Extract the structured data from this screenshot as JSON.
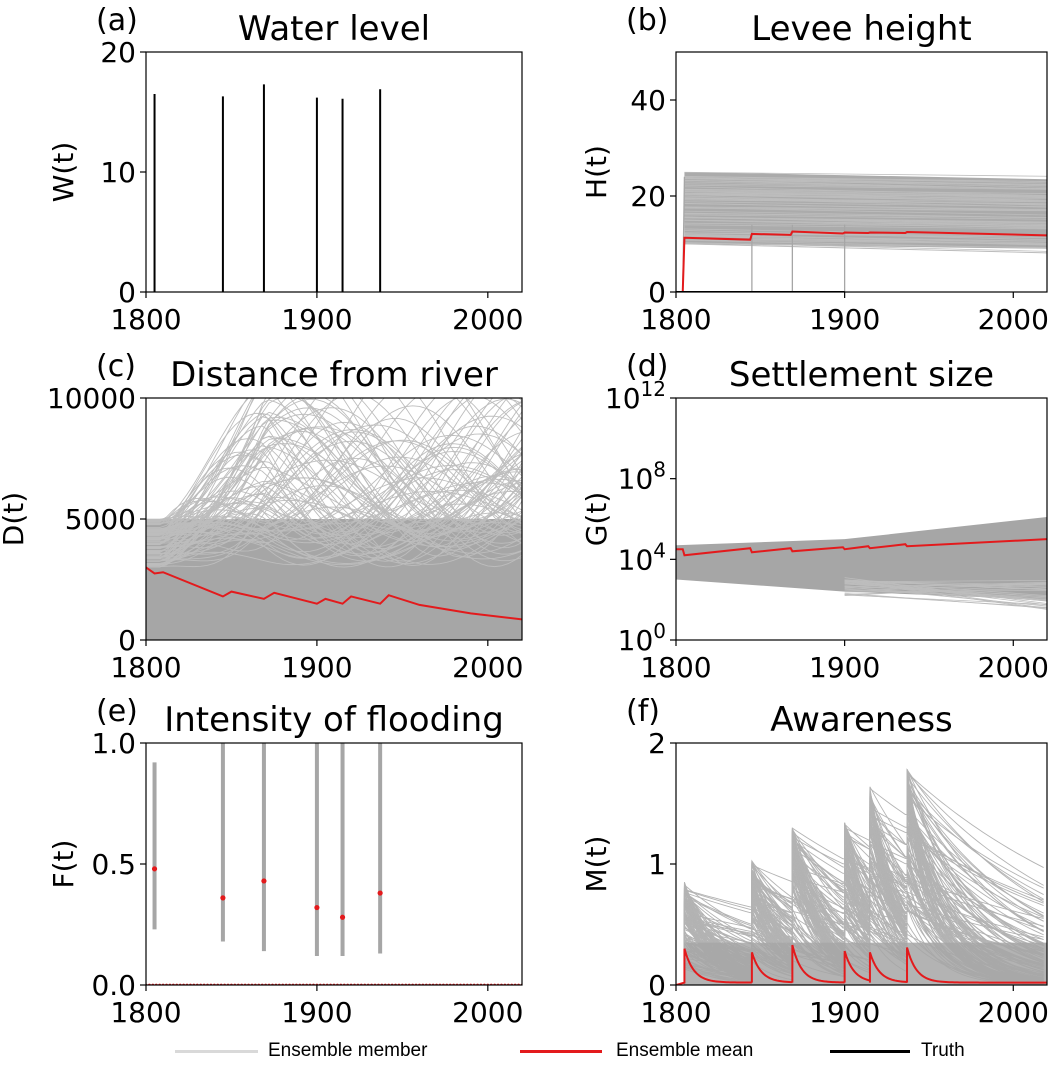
{
  "colors": {
    "ensemble_member": "#a6a6a6",
    "ensemble_mean": "#e31a1c",
    "truth": "#000000",
    "legend_member": "#d9d9d9"
  },
  "legend": [
    {
      "label": "Ensemble member",
      "color": "#d9d9d9"
    },
    {
      "label": "Ensemble mean",
      "color": "#e31a1c"
    },
    {
      "label": "Truth",
      "color": "#000000"
    }
  ],
  "chart_data": [
    {
      "panel": "(a)",
      "title": "Water level",
      "type": "line",
      "ylabel": "W(t)",
      "xlim": [
        1800,
        2020
      ],
      "ylim": [
        0,
        20
      ],
      "xticks": [
        "1800",
        "1900",
        "2000"
      ],
      "yticks": [
        "0",
        "10",
        "20"
      ],
      "series": [
        {
          "role": "truth",
          "spikes": [
            [
              1805,
              16.5
            ],
            [
              1845,
              16.3
            ],
            [
              1869,
              17.3
            ],
            [
              1900,
              16.2
            ],
            [
              1915,
              16.1
            ],
            [
              1937,
              16.9
            ]
          ]
        }
      ]
    },
    {
      "panel": "(b)",
      "title": "Levee height",
      "type": "line",
      "ylabel": "H(t)",
      "xlim": [
        1800,
        2020
      ],
      "ylim": [
        0,
        50
      ],
      "xticks": [
        "1800",
        "1900",
        "2000"
      ],
      "yticks": [
        "0",
        "20",
        "40"
      ],
      "ensemble_band": {
        "x": [
          1805,
          2020
        ],
        "lower": [
          10,
          9
        ],
        "upper": [
          25,
          23.5
        ]
      },
      "series": [
        {
          "role": "ensemble_mean",
          "x": [
            1800,
            1804,
            1805,
            1844,
            1845,
            1868,
            1869,
            1899,
            1900,
            1914,
            1915,
            1936,
            1937,
            2020
          ],
          "y": [
            0,
            0,
            11.3,
            10.9,
            12.1,
            11.9,
            12.6,
            12.2,
            12.4,
            12.3,
            12.4,
            12.3,
            12.5,
            11.8
          ]
        },
        {
          "role": "truth",
          "x": [
            1800,
            1900
          ],
          "y": [
            0,
            0
          ]
        }
      ]
    },
    {
      "panel": "(c)",
      "title": "Distance from river",
      "type": "line",
      "ylabel": "D(t)",
      "xlim": [
        1800,
        2020
      ],
      "ylim": [
        0,
        10000
      ],
      "xticks": [
        "1800",
        "1900",
        "2000"
      ],
      "yticks": [
        "0",
        "5000",
        "10000"
      ],
      "ensemble_band": {
        "x": [
          1800,
          1845,
          1900,
          1940,
          2020
        ],
        "lower": [
          800,
          0,
          0,
          0,
          0
        ],
        "upper": [
          5000,
          9000,
          10000,
          10000,
          10000
        ]
      },
      "series": [
        {
          "role": "ensemble_mean",
          "x": [
            1800,
            1805,
            1810,
            1845,
            1850,
            1869,
            1875,
            1900,
            1905,
            1915,
            1920,
            1937,
            1942,
            1960,
            1990,
            2020
          ],
          "y": [
            3000,
            2750,
            2800,
            1800,
            2000,
            1700,
            1950,
            1500,
            1700,
            1500,
            1800,
            1500,
            1850,
            1450,
            1100,
            850
          ]
        }
      ]
    },
    {
      "panel": "(d)",
      "title": "Settlement size",
      "type": "line",
      "yscale": "log",
      "ylabel": "G(t)",
      "xlim": [
        1800,
        2020
      ],
      "ylim": [
        1,
        1000000000000
      ],
      "xticks": [
        "1800",
        "1900",
        "2000"
      ],
      "yticks": [
        "10^0",
        "10^4",
        "10^8",
        "10^12"
      ],
      "ensemble_band": {
        "x": [
          1800,
          1900,
          2020
        ],
        "lower_log10": [
          3.0,
          2.4,
          2.0
        ],
        "upper_log10": [
          4.7,
          5.0,
          6.1
        ]
      },
      "series": [
        {
          "role": "ensemble_mean",
          "x": [
            1800,
            1804,
            1805,
            1844,
            1845,
            1868,
            1869,
            1899,
            1900,
            1914,
            1915,
            1936,
            1937,
            2020
          ],
          "y_log10": [
            4.5,
            4.5,
            4.2,
            4.55,
            4.35,
            4.55,
            4.4,
            4.6,
            4.5,
            4.65,
            4.55,
            4.75,
            4.65,
            5.0
          ]
        }
      ]
    },
    {
      "panel": "(e)",
      "title": "Intensity of flooding",
      "type": "scatter",
      "ylabel": "F(t)",
      "xlim": [
        1800,
        2020
      ],
      "ylim": [
        0.0,
        1.0
      ],
      "xticks": [
        "1800",
        "1900",
        "2000"
      ],
      "yticks": [
        "0.0",
        "0.5",
        "1.0"
      ],
      "ensemble_ranges": [
        {
          "x": 1805,
          "lo": 0.23,
          "hi": 0.92
        },
        {
          "x": 1845,
          "lo": 0.18,
          "hi": 1.0
        },
        {
          "x": 1869,
          "lo": 0.14,
          "hi": 1.0
        },
        {
          "x": 1900,
          "lo": 0.12,
          "hi": 1.0
        },
        {
          "x": 1915,
          "lo": 0.12,
          "hi": 1.0
        },
        {
          "x": 1937,
          "lo": 0.13,
          "hi": 1.0
        }
      ],
      "series": [
        {
          "role": "ensemble_mean",
          "points": [
            [
              1805,
              0.48
            ],
            [
              1845,
              0.36
            ],
            [
              1869,
              0.43
            ],
            [
              1900,
              0.32
            ],
            [
              1915,
              0.28
            ],
            [
              1937,
              0.38
            ]
          ],
          "baseline": 0.0
        }
      ]
    },
    {
      "panel": "(f)",
      "title": "Awareness",
      "type": "line",
      "ylabel": "M(t)",
      "xlim": [
        1800,
        2020
      ],
      "ylim": [
        0,
        2
      ],
      "xticks": [
        "1800",
        "1900",
        "2000"
      ],
      "yticks": [
        "0",
        "1",
        "2"
      ],
      "ensemble_peaks": [
        [
          1805,
          0.85
        ],
        [
          1845,
          1.03
        ],
        [
          1869,
          1.3
        ],
        [
          1900,
          1.35
        ],
        [
          1915,
          1.65
        ],
        [
          1937,
          1.8
        ]
      ],
      "series": [
        {
          "role": "ensemble_mean",
          "floods": [
            1805,
            1845,
            1869,
            1900,
            1915,
            1937
          ],
          "peaks": [
            0.3,
            0.27,
            0.33,
            0.28,
            0.27,
            0.31
          ],
          "floor": 0.02
        }
      ]
    }
  ]
}
